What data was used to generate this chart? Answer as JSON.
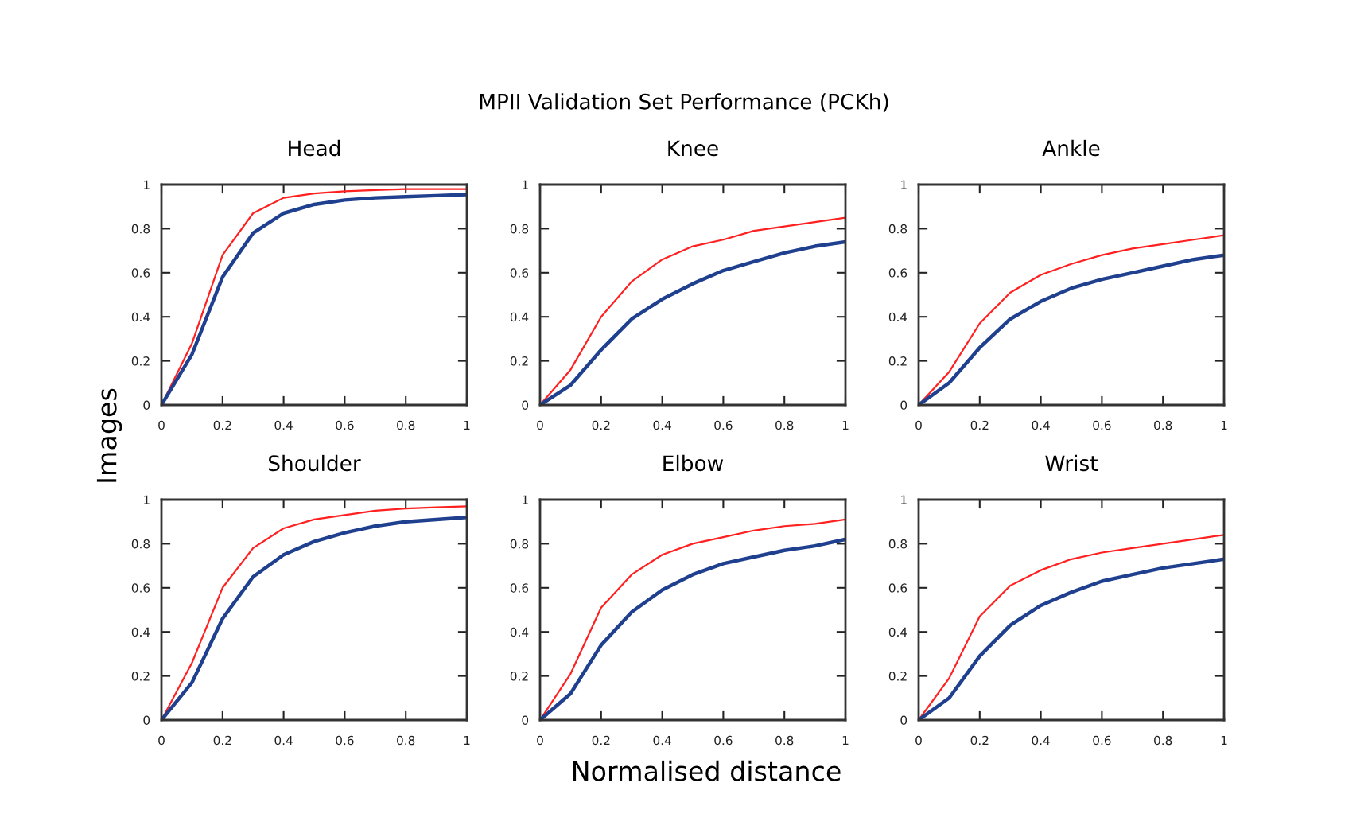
{
  "chart_data": [
    {
      "type": "line",
      "title": "Head",
      "annotations": [
        "MPII Validation Set Performance (PCKh)"
      ],
      "ylabel": "Images",
      "x": [
        0,
        0.1,
        0.2,
        0.3,
        0.4,
        0.5,
        0.6,
        0.7,
        0.8,
        0.9,
        1
      ],
      "xlim": [
        0,
        1
      ],
      "ylim": [
        0,
        1
      ],
      "xticks": [
        0,
        0.2,
        0.4,
        0.6,
        0.8,
        1
      ],
      "yticks": [
        0,
        0.2,
        0.4,
        0.6,
        0.8,
        1
      ],
      "grid": false,
      "series": [
        {
          "color": "#ff2020",
          "values": [
            0,
            0.28,
            0.68,
            0.87,
            0.94,
            0.96,
            0.97,
            0.975,
            0.98,
            0.98,
            0.98
          ]
        },
        {
          "color": "#1f3f8f",
          "values": [
            0,
            0.23,
            0.58,
            0.78,
            0.87,
            0.91,
            0.93,
            0.94,
            0.945,
            0.95,
            0.955
          ]
        }
      ]
    },
    {
      "type": "line",
      "title": "Knee",
      "x": [
        0,
        0.1,
        0.2,
        0.3,
        0.4,
        0.5,
        0.6,
        0.7,
        0.8,
        0.9,
        1
      ],
      "xlim": [
        0,
        1
      ],
      "ylim": [
        0,
        1
      ],
      "xticks": [
        0,
        0.2,
        0.4,
        0.6,
        0.8,
        1
      ],
      "yticks": [
        0,
        0.2,
        0.4,
        0.6,
        0.8,
        1
      ],
      "grid": false,
      "series": [
        {
          "color": "#ff2020",
          "values": [
            0,
            0.16,
            0.4,
            0.56,
            0.66,
            0.72,
            0.75,
            0.79,
            0.81,
            0.83,
            0.85
          ]
        },
        {
          "color": "#1f3f8f",
          "values": [
            0,
            0.09,
            0.25,
            0.39,
            0.48,
            0.55,
            0.61,
            0.65,
            0.69,
            0.72,
            0.74
          ]
        }
      ]
    },
    {
      "type": "line",
      "title": "Ankle",
      "x": [
        0,
        0.1,
        0.2,
        0.3,
        0.4,
        0.5,
        0.6,
        0.7,
        0.8,
        0.9,
        1
      ],
      "xlim": [
        0,
        1
      ],
      "ylim": [
        0,
        1
      ],
      "xticks": [
        0,
        0.2,
        0.4,
        0.6,
        0.8,
        1
      ],
      "yticks": [
        0,
        0.2,
        0.4,
        0.6,
        0.8,
        1
      ],
      "grid": false,
      "series": [
        {
          "color": "#ff2020",
          "values": [
            0,
            0.15,
            0.37,
            0.51,
            0.59,
            0.64,
            0.68,
            0.71,
            0.73,
            0.75,
            0.77
          ]
        },
        {
          "color": "#1f3f8f",
          "values": [
            0,
            0.1,
            0.26,
            0.39,
            0.47,
            0.53,
            0.57,
            0.6,
            0.63,
            0.66,
            0.68
          ]
        }
      ]
    },
    {
      "type": "line",
      "title": "Shoulder",
      "x": [
        0,
        0.1,
        0.2,
        0.3,
        0.4,
        0.5,
        0.6,
        0.7,
        0.8,
        0.9,
        1
      ],
      "xlim": [
        0,
        1
      ],
      "ylim": [
        0,
        1
      ],
      "xticks": [
        0,
        0.2,
        0.4,
        0.6,
        0.8,
        1
      ],
      "yticks": [
        0,
        0.2,
        0.4,
        0.6,
        0.8,
        1
      ],
      "grid": false,
      "series": [
        {
          "color": "#ff2020",
          "values": [
            0,
            0.26,
            0.6,
            0.78,
            0.87,
            0.91,
            0.93,
            0.95,
            0.96,
            0.965,
            0.97
          ]
        },
        {
          "color": "#1f3f8f",
          "values": [
            0,
            0.17,
            0.46,
            0.65,
            0.75,
            0.81,
            0.85,
            0.88,
            0.9,
            0.91,
            0.92
          ]
        }
      ]
    },
    {
      "type": "line",
      "title": "Elbow",
      "xlabel": "Normalised distance",
      "x": [
        0,
        0.1,
        0.2,
        0.3,
        0.4,
        0.5,
        0.6,
        0.7,
        0.8,
        0.9,
        1
      ],
      "xlim": [
        0,
        1
      ],
      "ylim": [
        0,
        1
      ],
      "xticks": [
        0,
        0.2,
        0.4,
        0.6,
        0.8,
        1
      ],
      "yticks": [
        0,
        0.2,
        0.4,
        0.6,
        0.8,
        1
      ],
      "grid": false,
      "series": [
        {
          "color": "#ff2020",
          "values": [
            0,
            0.21,
            0.51,
            0.66,
            0.75,
            0.8,
            0.83,
            0.86,
            0.88,
            0.89,
            0.91
          ]
        },
        {
          "color": "#1f3f8f",
          "values": [
            0,
            0.12,
            0.34,
            0.49,
            0.59,
            0.66,
            0.71,
            0.74,
            0.77,
            0.79,
            0.82
          ]
        }
      ]
    },
    {
      "type": "line",
      "title": "Wrist",
      "x": [
        0,
        0.1,
        0.2,
        0.3,
        0.4,
        0.5,
        0.6,
        0.7,
        0.8,
        0.9,
        1
      ],
      "xlim": [
        0,
        1
      ],
      "ylim": [
        0,
        1
      ],
      "xticks": [
        0,
        0.2,
        0.4,
        0.6,
        0.8,
        1
      ],
      "yticks": [
        0,
        0.2,
        0.4,
        0.6,
        0.8,
        1
      ],
      "grid": false,
      "series": [
        {
          "color": "#ff2020",
          "values": [
            0,
            0.19,
            0.47,
            0.61,
            0.68,
            0.73,
            0.76,
            0.78,
            0.8,
            0.82,
            0.84
          ]
        },
        {
          "color": "#1f3f8f",
          "values": [
            0,
            0.1,
            0.29,
            0.43,
            0.52,
            0.58,
            0.63,
            0.66,
            0.69,
            0.71,
            0.73
          ]
        }
      ]
    }
  ]
}
